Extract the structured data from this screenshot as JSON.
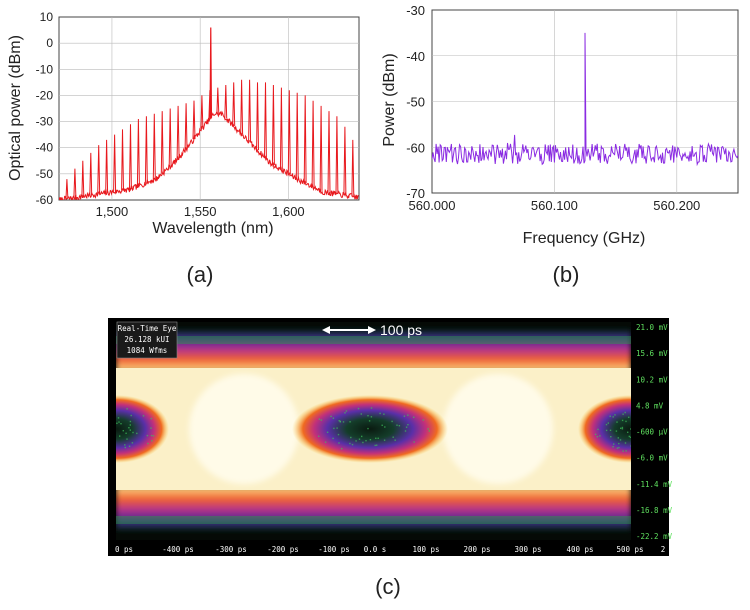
{
  "colors": {
    "spectrum": "#e8191e",
    "rf": "#8a2be2",
    "grid": "#bbbbbb",
    "scope_bg": "#000000",
    "scope_axis_text": "#5fe05f",
    "scope_time_text": "#ffffff"
  },
  "chart_data": [
    {
      "id": "a",
      "type": "line",
      "panel_label": "(a)",
      "xlabel": "Wavelength (nm)",
      "ylabel": "Optical power (dBm)",
      "xlim": [
        1470,
        1640
      ],
      "ylim": [
        -60,
        10
      ],
      "x_ticks": [
        1500,
        1550,
        1600
      ],
      "x_tick_labels": [
        "1,500",
        "1,550",
        "1,600"
      ],
      "y_ticks": [
        10,
        0,
        -10,
        -20,
        -30,
        -40,
        -50,
        -60
      ],
      "y_tick_labels": [
        "10",
        "0",
        "-10",
        "-20",
        "-30",
        "-40",
        "-50",
        "-60"
      ],
      "grid": true,
      "comb_lines": {
        "first_nm": 1474.5,
        "spacing_nm": 4.5,
        "count": 37,
        "peak_dbm": [
          -52,
          -48,
          -45,
          -42,
          -39,
          -37,
          -35,
          -33,
          -31,
          -29,
          -28,
          -27,
          -26,
          -25,
          -24,
          -23,
          -22,
          -20,
          -18,
          -17,
          -16,
          -15,
          -14,
          -14,
          -15,
          -15,
          -16,
          -17,
          -18,
          -19,
          -20,
          -22,
          -24,
          -26,
          -28,
          -32,
          -37
        ]
      },
      "pump": {
        "x": 1556,
        "y": 6
      },
      "floor_envelope": [
        [
          1470,
          -60
        ],
        [
          1490,
          -58
        ],
        [
          1510,
          -56
        ],
        [
          1525,
          -52
        ],
        [
          1535,
          -46
        ],
        [
          1545,
          -38
        ],
        [
          1553,
          -31
        ],
        [
          1558,
          -27
        ],
        [
          1562,
          -27
        ],
        [
          1568,
          -31
        ],
        [
          1578,
          -38
        ],
        [
          1590,
          -46
        ],
        [
          1605,
          -52
        ],
        [
          1620,
          -57
        ],
        [
          1640,
          -59
        ]
      ]
    },
    {
      "id": "b",
      "type": "line",
      "panel_label": "(b)",
      "xlabel": "Frequency (GHz)",
      "ylabel": "Power (dBm)",
      "xlim": [
        560.0,
        560.25
      ],
      "ylim": [
        -70,
        -30
      ],
      "x_ticks": [
        560.0,
        560.1,
        560.2
      ],
      "x_tick_labels": [
        "560.000",
        "560.100",
        "560.200"
      ],
      "y_ticks": [
        -30,
        -40,
        -50,
        -60,
        -70
      ],
      "y_tick_labels": [
        "-30",
        "-40",
        "-50",
        "-60",
        "-70"
      ],
      "grid": true,
      "noise_floor_dbm": -61.5,
      "peak": {
        "x": 560.125,
        "y": -35
      }
    },
    {
      "id": "c",
      "type": "heatmap",
      "panel_label": "(c)",
      "info_lines": [
        "Real-Time Eye",
        "26.128 kUI",
        "1084 Wfms"
      ],
      "scale_bar_label": "100 ps",
      "x_tick_labels": [
        "0 ps",
        "-400 ps",
        "-300 ps",
        "-200 ps",
        "-100 ps",
        "0.0 s",
        "100 ps",
        "200 ps",
        "300 ps",
        "400 ps",
        "500 ps",
        "2"
      ],
      "y_tick_labels": [
        "21.0 mV",
        "15.6 mV",
        "10.2 mV",
        "4.8 mV",
        "-600 µV",
        "-6.0 mV",
        "-11.4 mV",
        "-16.8 mV",
        "-22.2 mV"
      ],
      "eye_centers_ps": [
        -500,
        0,
        500
      ],
      "eye_amplitude_mv": [
        -11.4,
        10.2
      ]
    }
  ]
}
